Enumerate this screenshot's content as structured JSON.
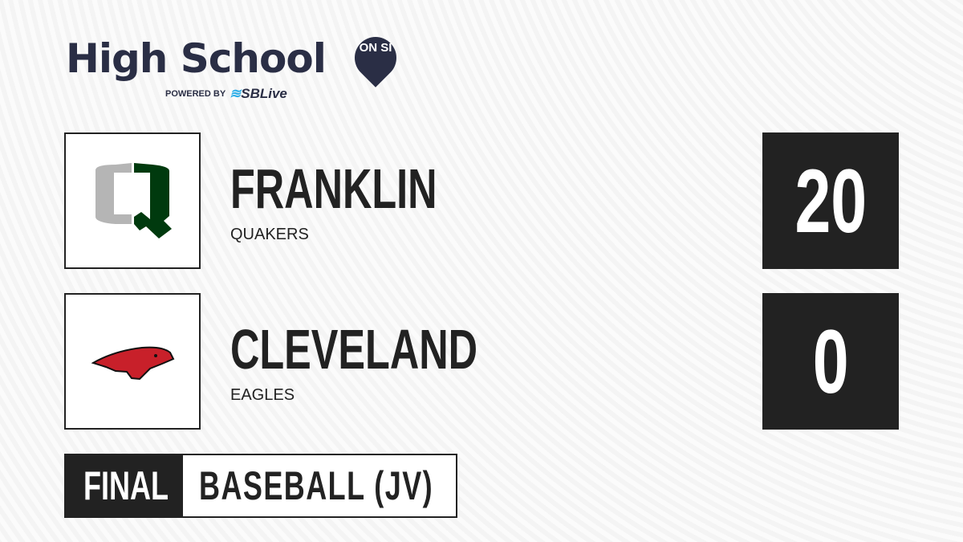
{
  "brand": {
    "title": "High School",
    "badge": "ON SI",
    "powered_by": "POWERED BY",
    "partner": "SBLive"
  },
  "teams": [
    {
      "name": "FRANKLIN",
      "mascot": "QUAKERS",
      "score": "20",
      "logo_colors": [
        "#b5b5b5",
        "#003a0e"
      ]
    },
    {
      "name": "CLEVELAND",
      "mascot": "EAGLES",
      "score": "0",
      "logo_colors": [
        "#c8202a",
        "#111111"
      ]
    }
  ],
  "status": "FINAL",
  "sport": "BASEBALL (JV)"
}
